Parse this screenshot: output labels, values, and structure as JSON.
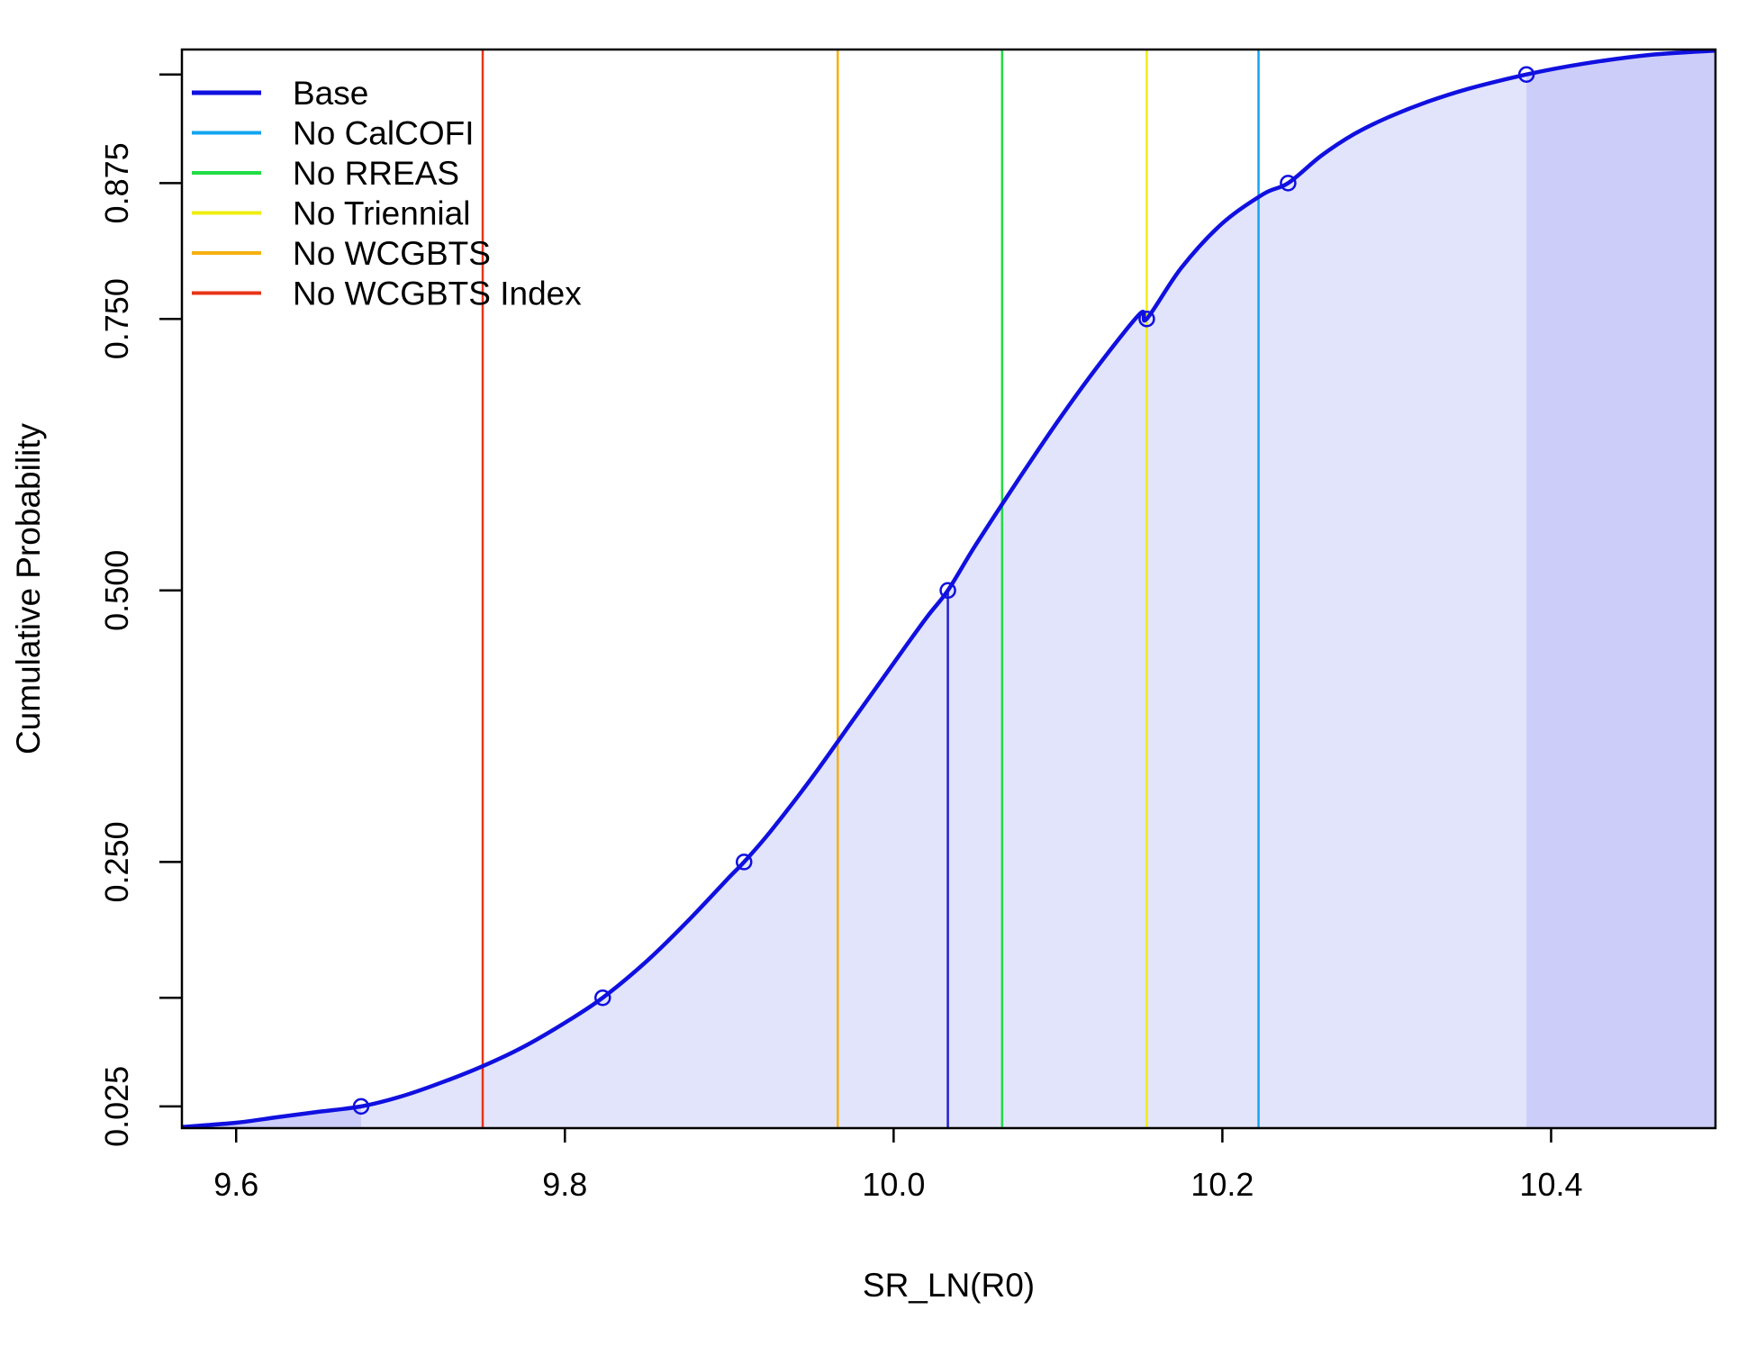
{
  "chart_data": {
    "type": "line",
    "title": "",
    "xlabel": "SR_LN(R0)",
    "ylabel": "Cumulative Probability",
    "xlim": [
      9.567,
      10.5
    ],
    "ylim": [
      0.005,
      0.998
    ],
    "xticks": [
      9.6,
      9.8,
      10.0,
      10.2,
      10.4
    ],
    "xtick_labels": [
      "9.6",
      "9.8",
      "10.0",
      "10.2",
      "10.4"
    ],
    "yticks": [
      0.025,
      0.125,
      0.25,
      0.5,
      0.75,
      0.875,
      0.975
    ],
    "ytick_labels": [
      "0.025",
      "",
      "0.250",
      "0.500",
      "0.750",
      "0.875",
      ""
    ],
    "grid": false,
    "legend_position": "top-left",
    "base": {
      "name": "Base",
      "color": "#1010e0",
      "fill_color": "#e2e4fb",
      "tail_fill_color": "#cdcdf9",
      "median_color": "#2020d0",
      "curve_x": [
        9.567,
        9.6,
        9.625,
        9.65,
        9.676,
        9.7,
        9.725,
        9.75,
        9.775,
        9.8,
        9.823,
        9.85,
        9.875,
        9.9,
        9.909,
        9.925,
        9.95,
        9.975,
        10.0,
        10.02,
        10.033,
        10.05,
        10.075,
        10.1,
        10.125,
        10.15,
        10.154,
        10.175,
        10.2,
        10.225,
        10.24,
        10.26,
        10.28,
        10.3,
        10.325,
        10.35,
        10.385,
        10.42,
        10.46,
        10.5
      ],
      "curve_y": [
        0.006,
        0.01,
        0.015,
        0.02,
        0.025,
        0.034,
        0.047,
        0.062,
        0.08,
        0.102,
        0.125,
        0.159,
        0.196,
        0.236,
        0.25,
        0.278,
        0.327,
        0.38,
        0.433,
        0.475,
        0.5,
        0.542,
        0.6,
        0.656,
        0.708,
        0.755,
        0.75,
        0.797,
        0.838,
        0.865,
        0.875,
        0.9,
        0.92,
        0.935,
        0.95,
        0.962,
        0.975,
        0.985,
        0.993,
        0.997
      ],
      "quantile_x": [
        9.676,
        9.823,
        9.909,
        10.033,
        10.154,
        10.24,
        10.385
      ],
      "quantile_y": [
        0.025,
        0.125,
        0.25,
        0.5,
        0.75,
        0.875,
        0.975
      ],
      "median_x": 10.033,
      "lower_tail_end": 9.676,
      "upper_tail_start": 10.385
    },
    "series": [
      {
        "name": "Base",
        "color": "#1010e0",
        "line_width": 5
      },
      {
        "name": "No CalCOFI",
        "color": "#12a5f0",
        "x": 10.222
      },
      {
        "name": "No RREAS",
        "color": "#22dd44",
        "x": 10.066
      },
      {
        "name": "No Triennial",
        "color": "#eeee10",
        "x": 10.154
      },
      {
        "name": "No WCGBTS",
        "color": "#f5b010",
        "x": 9.966
      },
      {
        "name": "No WCGBTS Index",
        "color": "#e83418",
        "x": 9.75
      }
    ]
  }
}
